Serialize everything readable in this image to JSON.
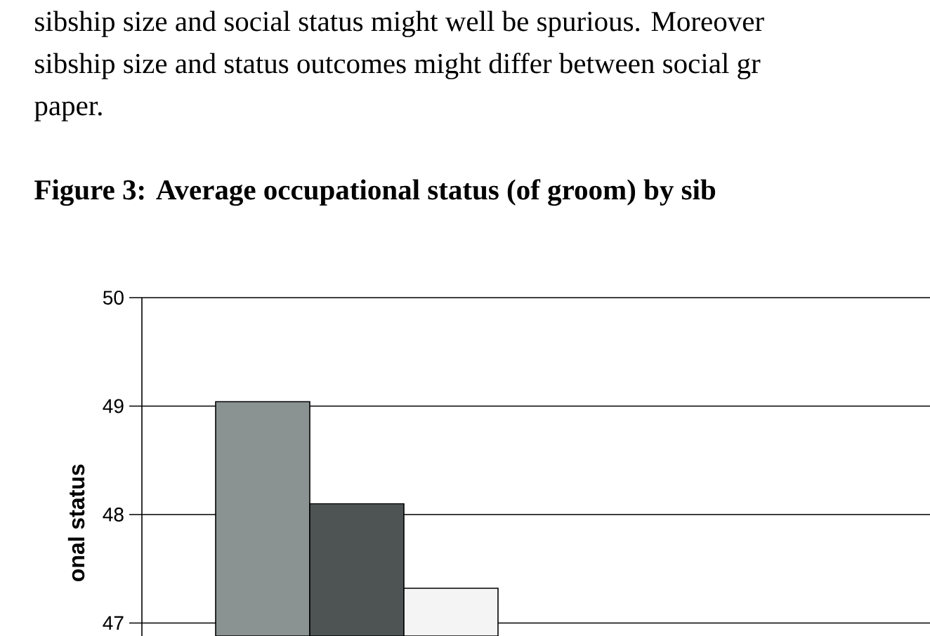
{
  "chart_data": {
    "type": "bar",
    "title": "Figure 3:      Average occupational status (of groom) by sib",
    "ylabel": "onal status",
    "annotations": [
      "sibship size and social status might well be spurious. Moreover",
      "sibship size and status outcomes might differ between social gr",
      "paper."
    ],
    "categories": [
      null
    ],
    "series": [
      {
        "color": "#8a9292",
        "values": [
          49.04
        ]
      },
      {
        "color": "#4e5454",
        "values": [
          48.1
        ]
      },
      {
        "color": "#f4f4f4",
        "values": [
          47.32
        ]
      }
    ],
    "ylim": [
      46.88,
      50
    ],
    "yticks": [
      47,
      48,
      49,
      50
    ],
    "grid": "y"
  }
}
